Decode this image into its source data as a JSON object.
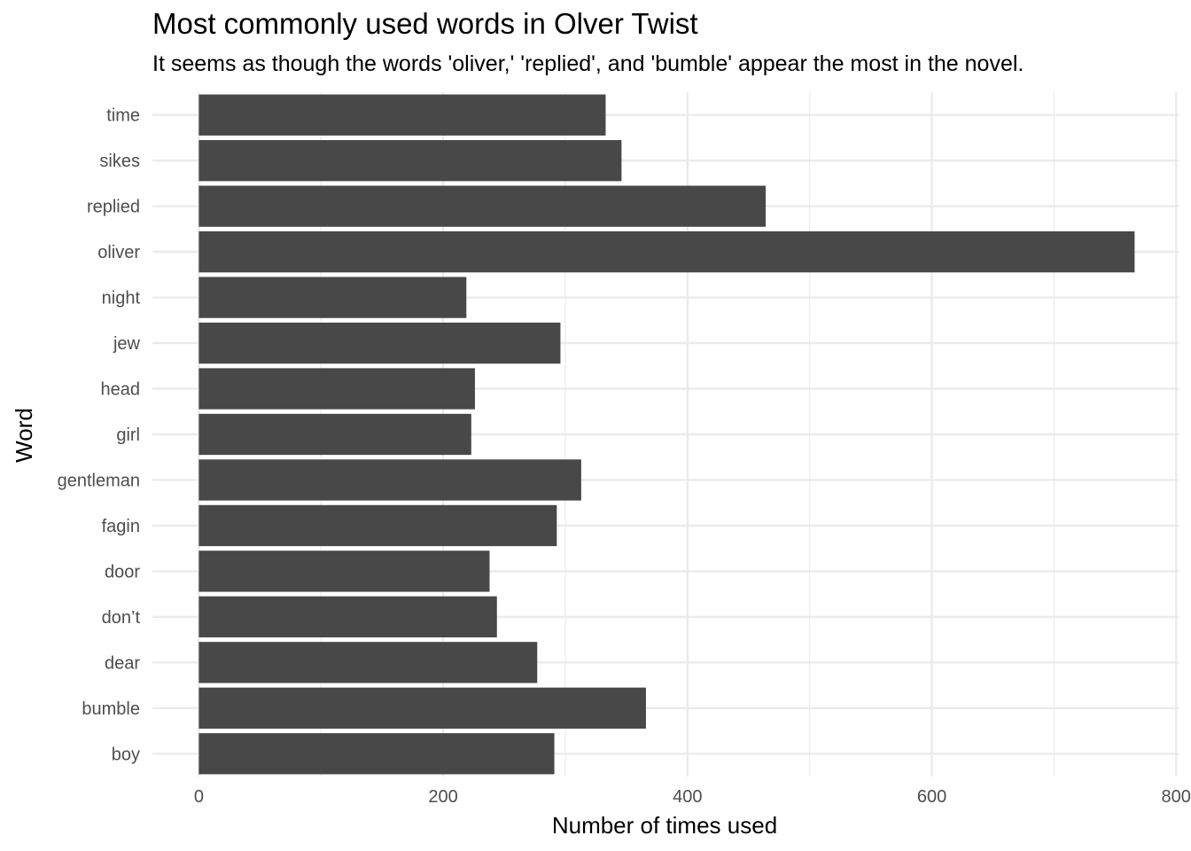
{
  "chart_data": {
    "type": "bar",
    "orientation": "horizontal",
    "title": "Most commonly used words in Olver Twist",
    "subtitle": "It seems as though the words 'oliver,' 'replied', and 'bumble' appear the most in the novel.",
    "xlabel": "Number of times used",
    "ylabel": "Word",
    "categories": [
      "boy",
      "bumble",
      "dear",
      "don’t",
      "door",
      "fagin",
      "gentleman",
      "girl",
      "head",
      "jew",
      "night",
      "oliver",
      "replied",
      "sikes",
      "time"
    ],
    "values": [
      291,
      366,
      277,
      244,
      238,
      293,
      313,
      223,
      226,
      296,
      219,
      766,
      464,
      346,
      333
    ],
    "xlim": [
      -38,
      802
    ],
    "xticks": [
      0,
      200,
      400,
      600,
      800
    ],
    "grid": true,
    "bar_color": "#484848",
    "grid_color": "#ebebeb"
  }
}
